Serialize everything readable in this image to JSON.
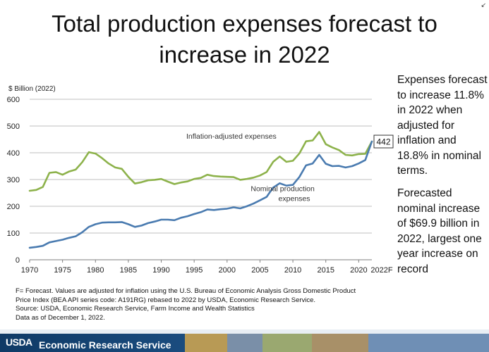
{
  "title_line1": "Total production expenses forecast to",
  "title_line2": "increase in 2022",
  "corner_icon": "collapse-arrow-icon",
  "side_text_1": "Expenses forecast to increase 11.8% in 2022 when adjusted for inflation and 18.8% in nominal terms.",
  "side_text_2": "Forecasted nominal increase of $69.9 billion in 2022, largest one year increase on record",
  "footnotes": [
    "F= Forecast. Values are adjusted for inflation using the U.S. Bureau of Economic Analysis Gross Domestic Product",
    "Price Index (BEA API series code: A191RG) rebased to 2022 by USDA, Economic Research Service.",
    "Source: USDA, Economic Research Service, Farm Income and Wealth Statistics",
    "Data as of December 1, 2022."
  ],
  "footer": {
    "logo": "USDA",
    "agency": "Economic Research Service"
  },
  "colors": {
    "inflation_adjusted": "#8db24b",
    "nominal": "#4a7bb0",
    "grid": "#bfbfbf"
  },
  "chart_data": {
    "type": "line",
    "ylabel": "$ Billion (2022)",
    "xlabel": "",
    "ylim": [
      0,
      600
    ],
    "yticks": [
      0,
      100,
      200,
      300,
      400,
      500,
      600
    ],
    "xlim": [
      1970,
      2022
    ],
    "xticks": [
      1970,
      1975,
      1980,
      1985,
      1990,
      1995,
      2000,
      2005,
      2010,
      2015,
      2020
    ],
    "xtick_labels": [
      "1970",
      "1975",
      "1980",
      "1985",
      "1990",
      "1995",
      "2000",
      "2005",
      "2010",
      "2015",
      "2020"
    ],
    "forecast_tick_label": "2022F",
    "grid": "horizontal",
    "end_label": "442",
    "series": [
      {
        "name": "Inflation-adjusted expenses",
        "x": [
          1970,
          1971,
          1972,
          1973,
          1974,
          1975,
          1976,
          1977,
          1978,
          1979,
          1980,
          1981,
          1982,
          1983,
          1984,
          1985,
          1986,
          1987,
          1988,
          1989,
          1990,
          1991,
          1992,
          1993,
          1994,
          1995,
          1996,
          1997,
          1998,
          1999,
          2000,
          2001,
          2002,
          2003,
          2004,
          2005,
          2006,
          2007,
          2008,
          2009,
          2010,
          2011,
          2012,
          2013,
          2014,
          2015,
          2016,
          2017,
          2018,
          2019,
          2020,
          2021,
          2022
        ],
        "values": [
          258,
          261,
          272,
          325,
          328,
          318,
          330,
          337,
          365,
          402,
          397,
          380,
          360,
          345,
          340,
          310,
          285,
          290,
          297,
          299,
          302,
          292,
          283,
          289,
          293,
          302,
          306,
          318,
          313,
          311,
          310,
          309,
          299,
          302,
          307,
          315,
          328,
          366,
          386,
          366,
          370,
          398,
          443,
          446,
          478,
          432,
          420,
          410,
          392,
          390,
          395,
          396,
          442
        ]
      },
      {
        "name": "Nominal production expenses",
        "x": [
          1970,
          1971,
          1972,
          1973,
          1974,
          1975,
          1976,
          1977,
          1978,
          1979,
          1980,
          1981,
          1982,
          1983,
          1984,
          1985,
          1986,
          1987,
          1988,
          1989,
          1990,
          1991,
          1992,
          1993,
          1994,
          1995,
          1996,
          1997,
          1998,
          1999,
          2000,
          2001,
          2002,
          2003,
          2004,
          2005,
          2006,
          2007,
          2008,
          2009,
          2010,
          2011,
          2012,
          2013,
          2014,
          2015,
          2016,
          2017,
          2018,
          2019,
          2020,
          2021,
          2022
        ],
        "values": [
          45,
          48,
          52,
          65,
          70,
          75,
          82,
          88,
          103,
          123,
          133,
          139,
          140,
          140,
          141,
          133,
          123,
          128,
          137,
          143,
          150,
          150,
          148,
          157,
          163,
          171,
          178,
          188,
          186,
          189,
          191,
          196,
          192,
          200,
          210,
          222,
          235,
          270,
          286,
          277,
          280,
          310,
          353,
          360,
          392,
          359,
          350,
          351,
          345,
          350,
          360,
          373,
          442
        ]
      }
    ],
    "annotations": [
      {
        "text": "Inflation-adjusted expenses",
        "series": 0
      },
      {
        "text_lines": [
          "Nominal production",
          "expenses"
        ],
        "series": 1
      }
    ]
  }
}
